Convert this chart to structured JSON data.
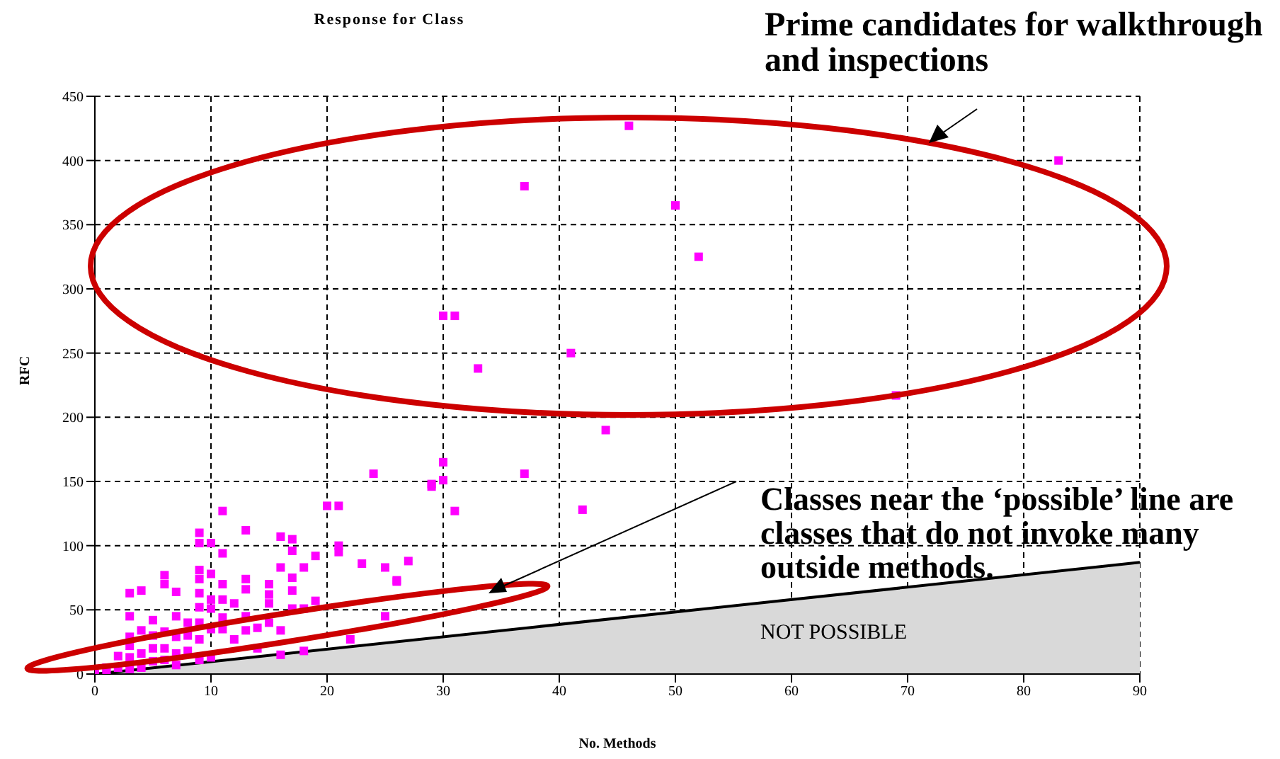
{
  "chart_data": {
    "type": "scatter",
    "title": "Response for Class",
    "xlabel": "No. Methods",
    "ylabel": "RFC",
    "xlim": [
      0,
      90
    ],
    "xticks": [
      0,
      10,
      20,
      30,
      40,
      50,
      60,
      70,
      80,
      90
    ],
    "ylim": [
      0,
      450
    ],
    "yticks": [
      0,
      50,
      100,
      150,
      200,
      250,
      300,
      350,
      400,
      450
    ],
    "grid": true,
    "series": [
      {
        "type": "area",
        "color": "#d9d9d9",
        "x": [
          0,
          90
        ],
        "values": [
          0,
          87
        ]
      },
      {
        "color": "#ff00ff",
        "marker": "square",
        "x": [
          0,
          1,
          1,
          2,
          2,
          3,
          3,
          3,
          3,
          3,
          3,
          4,
          4,
          4,
          4,
          5,
          5,
          5,
          5,
          6,
          6,
          6,
          6,
          6,
          7,
          7,
          7,
          7,
          7,
          8,
          8,
          8,
          9,
          9,
          9,
          9,
          9,
          9,
          9,
          9,
          9,
          10,
          10,
          10,
          10,
          10,
          10,
          11,
          11,
          11,
          11,
          11,
          11,
          12,
          12,
          13,
          13,
          13,
          13,
          13,
          14,
          14,
          15,
          15,
          15,
          15,
          16,
          16,
          16,
          16,
          17,
          17,
          17,
          17,
          17,
          18,
          18,
          18,
          19,
          19,
          20,
          21,
          21,
          21,
          22,
          23,
          24,
          25,
          25,
          26,
          26,
          27,
          29,
          29,
          30,
          30,
          30,
          31,
          31,
          33,
          37,
          37,
          41,
          42,
          44,
          46,
          50,
          52,
          69,
          83
        ],
        "values": [
          0,
          5,
          2,
          14,
          5,
          63,
          45,
          29,
          22,
          13,
          4,
          65,
          34,
          16,
          5,
          42,
          30,
          20,
          10,
          77,
          70,
          33,
          20,
          11,
          64,
          45,
          29,
          16,
          7,
          40,
          30,
          18,
          110,
          102,
          81,
          74,
          63,
          52,
          40,
          27,
          11,
          102,
          78,
          58,
          51,
          35,
          13,
          127,
          94,
          70,
          58,
          44,
          35,
          55,
          27,
          112,
          74,
          66,
          45,
          34,
          36,
          20,
          70,
          62,
          55,
          40,
          107,
          83,
          34,
          15,
          105,
          96,
          75,
          65,
          51,
          83,
          51,
          18,
          92,
          57,
          131,
          131,
          100,
          95,
          27,
          86,
          156,
          83,
          45,
          72,
          73,
          88,
          146,
          148,
          165,
          151,
          279,
          127,
          279,
          238,
          380,
          156,
          250,
          128,
          190,
          427,
          365,
          325,
          217,
          400
        ]
      }
    ],
    "annotations": [
      "Prime candidates for walkthrough and inspections",
      "Classes near the ‘possible’ line are classes that do not invoke many outside methods.",
      "NOT POSSIBLE"
    ]
  }
}
